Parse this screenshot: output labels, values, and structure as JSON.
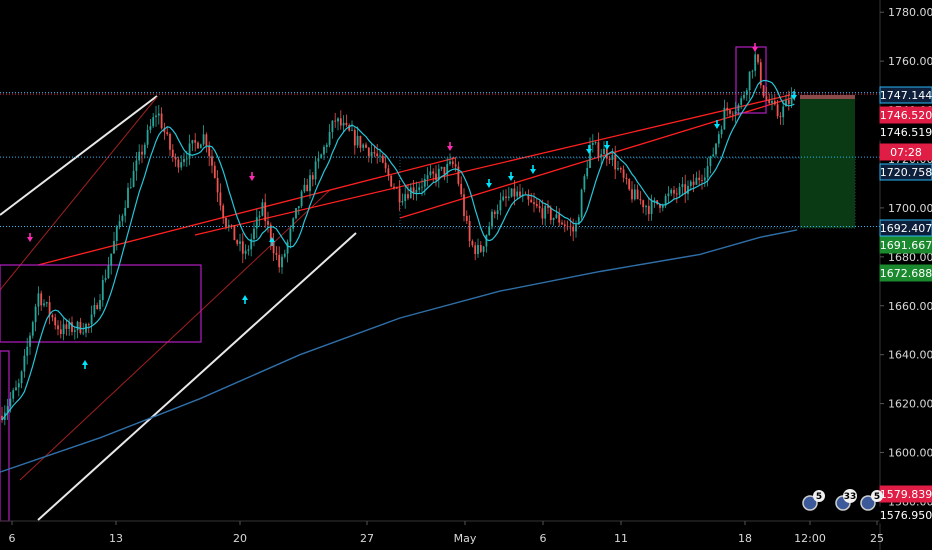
{
  "chart_data": {
    "type": "candlestick",
    "y_axis": {
      "position": "right",
      "range": [
        1572,
        1785
      ],
      "ticks": [
        "1780.000",
        "1760.000",
        "1740.000",
        "1720.000",
        "1700.000",
        "1680.000",
        "1660.000",
        "1640.000",
        "1620.000",
        "1600.000",
        "1580.000"
      ]
    },
    "x_axis": {
      "labels": [
        "6",
        "13",
        "20",
        "27",
        "May",
        "6",
        "11",
        "18",
        "12:00",
        "25"
      ]
    },
    "price_tags": [
      {
        "text": "1747.144",
        "value": 1747.144,
        "color": "#0d1f3a",
        "border": "#29b6f6"
      },
      {
        "text": "1746.520",
        "value": 1746.52,
        "color": "#e01e45",
        "border": "#e01e45"
      },
      {
        "text": "1746.519",
        "value": 1746.519,
        "color": "#000000",
        "border": "#000000"
      },
      {
        "text": "07:28",
        "value": 1741.2,
        "color": "#e01e45",
        "border": "#e01e45"
      },
      {
        "text": "1720.758",
        "value": 1720.758,
        "color": "#0d1f3a",
        "border": "#29b6f6"
      },
      {
        "text": "1692.407",
        "value": 1692.407,
        "color": "#0d1f3a",
        "border": "#29b6f6"
      },
      {
        "text": "1691.667",
        "value": 1691.667,
        "color": "#1b8a2e",
        "border": "#1b8a2e"
      },
      {
        "text": "1672.688",
        "value": 1672.688,
        "color": "#1b8a2e",
        "border": "#1b8a2e"
      },
      {
        "text": "1579.839",
        "value": 1579.839,
        "color": "#e01e45",
        "border": "#e01e45"
      },
      {
        "text": "1576.950",
        "value": 1576.95,
        "color": "#000000",
        "border": "#000000"
      }
    ],
    "horizontal_levels": [
      {
        "value": 1747.144,
        "color": "#29b6f6",
        "style": "dotted"
      },
      {
        "value": 1746.52,
        "color": "#e01e45",
        "style": "dotted"
      },
      {
        "value": 1720.758,
        "color": "#29b6f6",
        "style": "dotted"
      },
      {
        "value": 1692.407,
        "color": "#29b6f6",
        "style": "dotted"
      }
    ],
    "event_badges": [
      {
        "text": "5"
      },
      {
        "text": "33"
      },
      {
        "text": "5"
      }
    ],
    "colors": {
      "background": "#000000",
      "up": "#26a69a",
      "down": "#ef5350",
      "ma_fast": "#26c6da",
      "ma_slow": "#2f6fa8",
      "channel": "#e8e8e8",
      "trend": "#ff2020",
      "box": "#b31fc0",
      "arrow_up": "#00e5ff",
      "arrow_down": "#ff2ab4",
      "position_zone": "#0a3d14"
    }
  }
}
